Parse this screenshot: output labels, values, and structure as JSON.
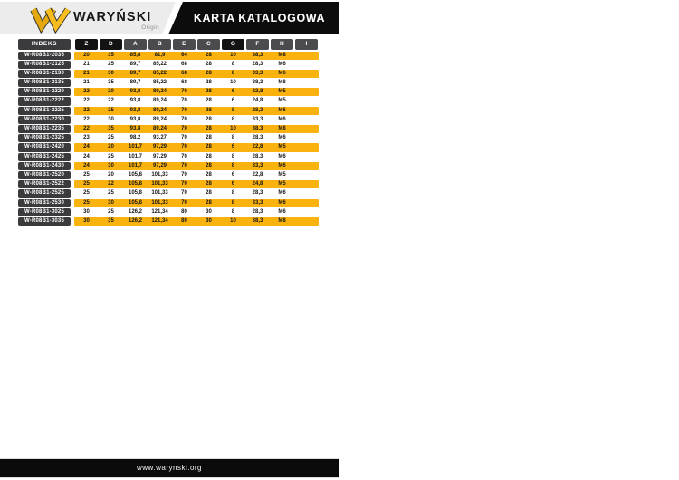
{
  "header": {
    "brand": "WARYŃSKI",
    "brand_sub": "Origin",
    "logo_icon": "warynski-w-mark",
    "title": "KARTA KATALOGOWA"
  },
  "table": {
    "columns": [
      "INDEKS",
      "Z",
      "D",
      "A",
      "B",
      "E",
      "C",
      "G",
      "F",
      "H",
      "I"
    ],
    "emphasized_columns": [
      "Z",
      "D",
      "G"
    ],
    "rows": [
      {
        "indeks": "W-R08B1-2035",
        "values": [
          "20",
          "35",
          "85,8",
          "81,9",
          "64",
          "28",
          "10",
          "38,3",
          "M8",
          ""
        ],
        "highlight": true
      },
      {
        "indeks": "W-R08B1-2125",
        "values": [
          "21",
          "25",
          "89,7",
          "85,22",
          "68",
          "28",
          "8",
          "28,3",
          "M6",
          ""
        ],
        "highlight": false
      },
      {
        "indeks": "W-R08B1-2130",
        "values": [
          "21",
          "30",
          "89,7",
          "85,22",
          "68",
          "28",
          "8",
          "33,3",
          "M6",
          ""
        ],
        "highlight": true
      },
      {
        "indeks": "W-R08B1-2135",
        "values": [
          "21",
          "35",
          "89,7",
          "85,22",
          "68",
          "28",
          "10",
          "38,3",
          "M8",
          ""
        ],
        "highlight": false
      },
      {
        "indeks": "W-R08B1-2220",
        "values": [
          "22",
          "20",
          "93,8",
          "89,24",
          "70",
          "28",
          "6",
          "22,8",
          "M5",
          ""
        ],
        "highlight": true
      },
      {
        "indeks": "W-R08B1-2222",
        "values": [
          "22",
          "22",
          "93,8",
          "89,24",
          "70",
          "28",
          "6",
          "24,8",
          "M5",
          ""
        ],
        "highlight": false
      },
      {
        "indeks": "W-R08B1-2225",
        "values": [
          "22",
          "25",
          "93,8",
          "89,24",
          "70",
          "28",
          "8",
          "28,3",
          "M6",
          ""
        ],
        "highlight": true
      },
      {
        "indeks": "W-R08B1-2230",
        "values": [
          "22",
          "30",
          "93,8",
          "89,24",
          "70",
          "28",
          "8",
          "33,3",
          "M6",
          ""
        ],
        "highlight": false
      },
      {
        "indeks": "W-R08B1-2235",
        "values": [
          "22",
          "35",
          "93,8",
          "89,24",
          "70",
          "28",
          "10",
          "38,3",
          "M8",
          ""
        ],
        "highlight": true
      },
      {
        "indeks": "W-R08B1-2325",
        "values": [
          "23",
          "25",
          "98,2",
          "93,27",
          "70",
          "28",
          "8",
          "28,3",
          "M6",
          ""
        ],
        "highlight": false
      },
      {
        "indeks": "W-R08B1-2420",
        "values": [
          "24",
          "20",
          "101,7",
          "97,29",
          "70",
          "28",
          "6",
          "22,8",
          "M5",
          ""
        ],
        "highlight": true
      },
      {
        "indeks": "W-R08B1-2425",
        "values": [
          "24",
          "25",
          "101,7",
          "97,29",
          "70",
          "28",
          "8",
          "28,3",
          "M6",
          ""
        ],
        "highlight": false
      },
      {
        "indeks": "W-R08B1-2430",
        "values": [
          "24",
          "30",
          "101,7",
          "97,29",
          "70",
          "28",
          "8",
          "33,3",
          "M6",
          ""
        ],
        "highlight": true
      },
      {
        "indeks": "W-R08B1-2520",
        "values": [
          "25",
          "20",
          "105,8",
          "101,33",
          "70",
          "28",
          "6",
          "22,8",
          "M5",
          ""
        ],
        "highlight": false
      },
      {
        "indeks": "W-R08B1-2522",
        "values": [
          "25",
          "22",
          "105,8",
          "101,33",
          "70",
          "28",
          "6",
          "24,8",
          "M5",
          ""
        ],
        "highlight": true
      },
      {
        "indeks": "W-R08B1-2525",
        "values": [
          "25",
          "25",
          "105,8",
          "101,33",
          "70",
          "28",
          "8",
          "28,3",
          "M6",
          ""
        ],
        "highlight": false
      },
      {
        "indeks": "W-R08B1-2530",
        "values": [
          "25",
          "30",
          "105,8",
          "101,33",
          "70",
          "28",
          "8",
          "33,3",
          "M6",
          ""
        ],
        "highlight": true
      },
      {
        "indeks": "W-R08B1-3025",
        "values": [
          "30",
          "25",
          "126,2",
          "121,34",
          "80",
          "30",
          "8",
          "28,3",
          "M6",
          ""
        ],
        "highlight": false
      },
      {
        "indeks": "W-R08B1-3035",
        "values": [
          "30",
          "35",
          "126,2",
          "121,34",
          "80",
          "30",
          "10",
          "38,3",
          "M8",
          ""
        ],
        "highlight": true
      }
    ]
  },
  "footer": {
    "url": "www.warynski.org"
  },
  "colors": {
    "accent_yellow": "#FAB20F",
    "header_cell_dark": "#131313",
    "header_cell_gray": "#4B4B4E",
    "index_cell_bg": "#3B3B3E",
    "brand_strip_bg": "#ECECEC",
    "title_box_bg": "#0C0C0C"
  }
}
